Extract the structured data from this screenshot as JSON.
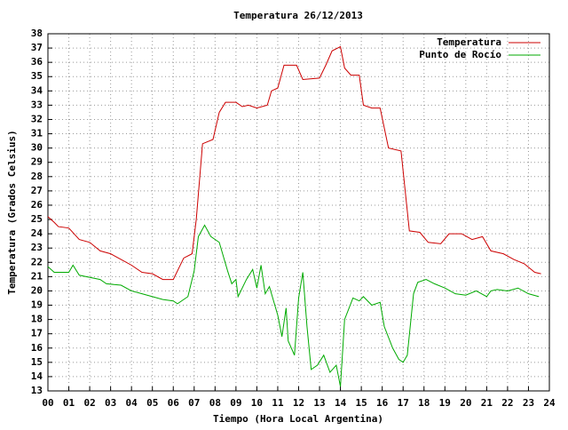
{
  "chart_data": {
    "type": "line",
    "title": "Temperatura 26/12/2013",
    "xlabel": "Tiempo (Hora Local Argentina)",
    "ylabel": "Temperatura (Grados Celsius)",
    "xlim": [
      0,
      24
    ],
    "ylim": [
      13,
      38
    ],
    "grid": true,
    "legend": "top-right",
    "xticks": [
      {
        "value": 0,
        "label": "00"
      },
      {
        "value": 1,
        "label": "01"
      },
      {
        "value": 2,
        "label": "02"
      },
      {
        "value": 3,
        "label": "03"
      },
      {
        "value": 4,
        "label": "04"
      },
      {
        "value": 5,
        "label": "05"
      },
      {
        "value": 6,
        "label": "06"
      },
      {
        "value": 7,
        "label": "07"
      },
      {
        "value": 8,
        "label": "08"
      },
      {
        "value": 9,
        "label": "09"
      },
      10,
      11,
      12,
      13,
      14,
      15,
      16,
      17,
      18,
      19,
      20,
      21,
      22,
      23,
      24
    ],
    "yticks": [
      13,
      14,
      15,
      16,
      17,
      18,
      19,
      20,
      21,
      22,
      23,
      24,
      25,
      26,
      27,
      28,
      29,
      30,
      31,
      32,
      33,
      34,
      35,
      36,
      37,
      38
    ],
    "series": [
      {
        "name": "Temperatura",
        "color": "#cc0000",
        "x": [
          0,
          0.3,
          0.5,
          1.0,
          1.5,
          2.0,
          2.5,
          3.0,
          3.5,
          4.0,
          4.5,
          5.0,
          5.5,
          6.0,
          6.5,
          6.9,
          7.1,
          7.4,
          7.9,
          8.2,
          8.5,
          9.0,
          9.3,
          9.6,
          10.0,
          10.5,
          10.7,
          11.0,
          11.3,
          11.9,
          12.2,
          13.0,
          13.3,
          13.6,
          14.0,
          14.2,
          14.5,
          14.9,
          15.1,
          15.5,
          15.9,
          16.3,
          16.9,
          17.3,
          17.8,
          18.2,
          18.8,
          19.2,
          19.8,
          20.3,
          20.8,
          21.2,
          21.8,
          22.3,
          22.8,
          23.3,
          23.6
        ],
        "values": [
          25.2,
          24.8,
          24.5,
          24.4,
          23.6,
          23.4,
          22.8,
          22.6,
          22.2,
          21.8,
          21.3,
          21.2,
          20.8,
          20.8,
          22.3,
          22.6,
          25,
          30.3,
          30.6,
          32.5,
          33.2,
          33.2,
          32.9,
          33.0,
          32.8,
          33.0,
          34,
          34.2,
          35.8,
          35.8,
          34.8,
          34.9,
          35.8,
          36.8,
          37.1,
          35.6,
          35.1,
          35.1,
          33.0,
          32.8,
          32.8,
          30.0,
          29.8,
          24.2,
          24.1,
          23.4,
          23.3,
          24.0,
          24.0,
          23.6,
          23.8,
          22.8,
          22.6,
          22.2,
          21.9,
          21.3,
          21.2
        ]
      },
      {
        "name": "Punto de Rocío",
        "color": "#00aa00",
        "x": [
          0,
          0.3,
          1.0,
          1.2,
          1.5,
          2.5,
          2.8,
          3.5,
          4.0,
          4.5,
          5.0,
          5.5,
          6.0,
          6.2,
          6.7,
          7.0,
          7.2,
          7.5,
          7.8,
          8.2,
          8.6,
          8.8,
          9.0,
          9.1,
          9.5,
          9.8,
          10.0,
          10.2,
          10.4,
          10.6,
          11.0,
          11.2,
          11.4,
          11.5,
          11.8,
          12.0,
          12.2,
          12.4,
          12.6,
          12.9,
          13.2,
          13.5,
          13.8,
          14.0,
          14.2,
          14.6,
          14.9,
          15.1,
          15.5,
          15.9,
          16.1,
          16.5,
          16.8,
          17.0,
          17.2,
          17.5,
          17.7,
          18.1,
          18.5,
          19.0,
          19.5,
          20.0,
          20.5,
          21.0,
          21.2,
          21.5,
          22.0,
          22.5,
          23.0,
          23.5
        ],
        "values": [
          21.7,
          21.3,
          21.3,
          21.8,
          21.1,
          20.8,
          20.5,
          20.4,
          20.0,
          19.8,
          19.6,
          19.4,
          19.3,
          19.1,
          19.6,
          21.4,
          23.8,
          24.6,
          23.8,
          23.4,
          21.4,
          20.5,
          20.8,
          19.6,
          20.8,
          21.5,
          20.2,
          21.8,
          19.8,
          20.3,
          18.3,
          16.8,
          18.8,
          16.5,
          15.5,
          19.5,
          21.3,
          17.5,
          14.5,
          14.8,
          15.5,
          14.3,
          14.8,
          13.3,
          18.0,
          19.5,
          19.3,
          19.6,
          19.0,
          19.2,
          17.5,
          16.0,
          15.2,
          15.0,
          15.5,
          19.8,
          20.6,
          20.8,
          20.5,
          20.2,
          19.8,
          19.7,
          20.0,
          19.6,
          20.0,
          20.1,
          20.0,
          20.2,
          19.8,
          19.6
        ]
      }
    ]
  }
}
